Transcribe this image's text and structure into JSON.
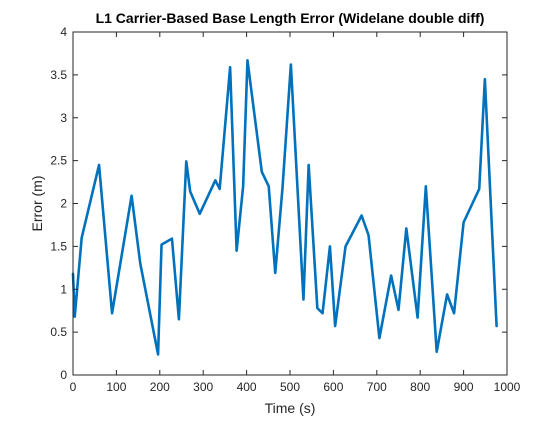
{
  "chart_data": {
    "type": "line",
    "title": "L1 Carrier-Based Base Length Error (Widelane double diff)",
    "xlabel": "Time (s)",
    "ylabel": "Error (m)",
    "xlim": [
      0,
      1000
    ],
    "ylim": [
      0,
      4
    ],
    "xticks": [
      0,
      100,
      200,
      300,
      400,
      500,
      600,
      700,
      800,
      900,
      1000
    ],
    "xtick_labels": [
      "0",
      "100",
      "200",
      "300",
      "400",
      "500",
      "600",
      "700",
      "800",
      "900",
      "1000"
    ],
    "yticks": [
      0,
      0.5,
      1,
      1.5,
      2,
      2.5,
      3,
      3.5,
      4
    ],
    "ytick_labels": [
      "0",
      "0.5",
      "1",
      "1.5",
      "2",
      "2.5",
      "3",
      "3.5",
      "4"
    ],
    "grid": false,
    "box": true,
    "line_color": "#0072BD",
    "series": [
      {
        "x": [
          0,
          4,
          20,
          60,
          90,
          135,
          155,
          196,
          204,
          228,
          244,
          261,
          270,
          292,
          328,
          338,
          362,
          377,
          392,
          402,
          435,
          451,
          466,
          483,
          502,
          531,
          543,
          563,
          575,
          592,
          604,
          628,
          665,
          681,
          706,
          733,
          750,
          768,
          794,
          813,
          838,
          862,
          878,
          900,
          936,
          949,
          976
        ],
        "y": [
          1.18,
          0.68,
          1.6,
          2.45,
          0.72,
          2.09,
          1.3,
          0.24,
          1.52,
          1.59,
          0.65,
          2.49,
          2.14,
          1.88,
          2.27,
          2.17,
          3.59,
          1.45,
          2.2,
          3.67,
          2.37,
          2.2,
          1.19,
          2.2,
          3.62,
          0.88,
          2.45,
          0.78,
          0.72,
          1.5,
          0.57,
          1.5,
          1.86,
          1.63,
          0.43,
          1.16,
          0.76,
          1.71,
          0.67,
          2.2,
          0.27,
          0.94,
          0.72,
          1.78,
          2.17,
          3.45,
          0.57
        ]
      }
    ]
  }
}
